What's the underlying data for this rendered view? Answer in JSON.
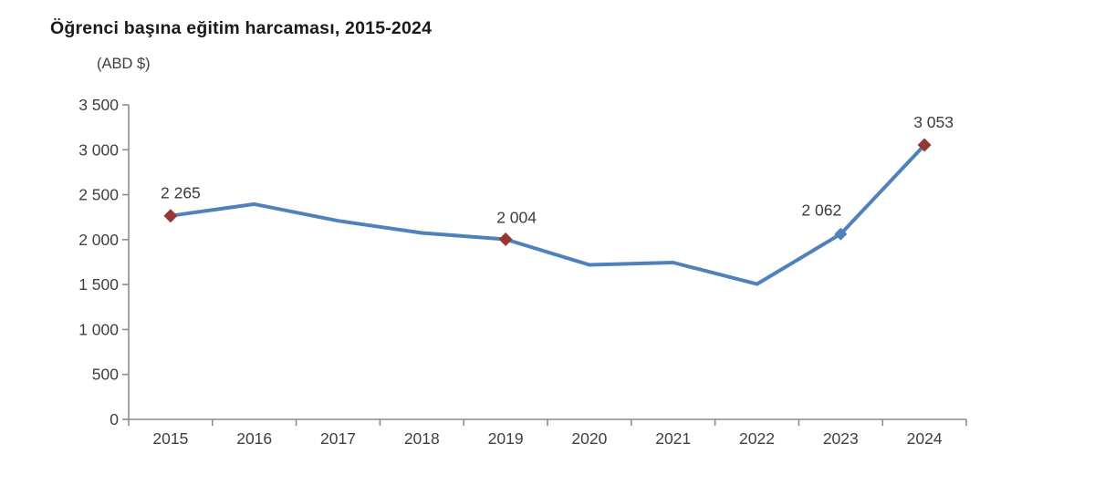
{
  "chart": {
    "title": "Öğrenci başına eğitim harcaması, 2015-2024",
    "unit_label": "(ABD $)"
  },
  "chart_data": {
    "type": "line",
    "title": "Öğrenci başına eğitim harcaması, 2015-2024",
    "ylabel": "(ABD $)",
    "xlabel": "",
    "categories": [
      "2015",
      "2016",
      "2017",
      "2018",
      "2019",
      "2020",
      "2021",
      "2022",
      "2023",
      "2024"
    ],
    "series": [
      {
        "name": "Öğrenci başına eğitim harcaması (ABD $)",
        "values": [
          2265,
          2395,
          2210,
          2075,
          2004,
          1720,
          1745,
          1505,
          2062,
          3053
        ],
        "color": "#4F81BD"
      }
    ],
    "point_labels": [
      {
        "category": "2015",
        "text": "2 265"
      },
      {
        "category": "2019",
        "text": "2 004"
      },
      {
        "category": "2023",
        "text": "2 062"
      },
      {
        "category": "2024",
        "text": "3 053"
      }
    ],
    "markers": [
      {
        "category": "2015",
        "shape": "diamond",
        "color": "#953735",
        "size": 7.5
      },
      {
        "category": "2019",
        "shape": "diamond",
        "color": "#953735",
        "size": 7.5
      },
      {
        "category": "2023",
        "shape": "diamond",
        "color": "#4F81BD",
        "size": 7
      },
      {
        "category": "2024",
        "shape": "diamond",
        "color": "#953735",
        "size": 7.5
      }
    ],
    "ylim": [
      0,
      3500
    ],
    "ytick_step": 500,
    "ytick_labels": [
      "0",
      "500",
      "1 000",
      "1 500",
      "2 000",
      "2 500",
      "3 000",
      "3 500"
    ],
    "grid": false,
    "legend_position": "none",
    "colors": {
      "line": "#4F81BD",
      "marker_red": "#953735",
      "marker_blue": "#4F81BD",
      "axis": "#8C8C8C",
      "tick_text": "#3F3F3F",
      "data_label_text": "#3B3B3B",
      "title_text": "#1A1A1A"
    }
  }
}
